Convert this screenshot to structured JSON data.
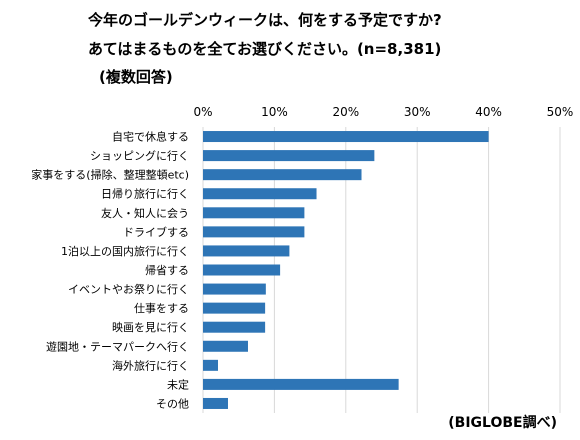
{
  "header": {
    "title_line1": "今年のゴールデンウィークは、何をする予定ですか?",
    "title_line2": "あてはまるものを全てお選びください。(n=8,381)",
    "subtitle": "(複数回答)"
  },
  "source": "(BIGLOBE調べ)",
  "colors": {
    "bar": "#2E75B6",
    "grid": "#D9D9D9"
  },
  "chart_data": {
    "type": "bar",
    "orientation": "horizontal",
    "categories": [
      "自宅で休息する",
      "ショッピングに行く",
      "家事をする(掃除、整理整頓etc)",
      "日帰り旅行に行く",
      "友人・知人に会う",
      "ドライブする",
      "1泊以上の国内旅行に行く",
      "帰省する",
      "イベントやお祭りに行く",
      "仕事をする",
      "映画を見に行く",
      "遊園地・テーマパークへ行く",
      "海外旅行に行く",
      "未定",
      "その他"
    ],
    "values": [
      40.0,
      24.0,
      22.2,
      15.9,
      14.2,
      14.2,
      12.1,
      10.8,
      8.8,
      8.7,
      8.7,
      6.3,
      2.1,
      27.4,
      3.5
    ],
    "unit": "%",
    "xlim": [
      0,
      50
    ],
    "ticks": [
      "0%",
      "10%",
      "20%",
      "30%",
      "40%",
      "50%"
    ],
    "gridlines": true,
    "legend": "none"
  }
}
